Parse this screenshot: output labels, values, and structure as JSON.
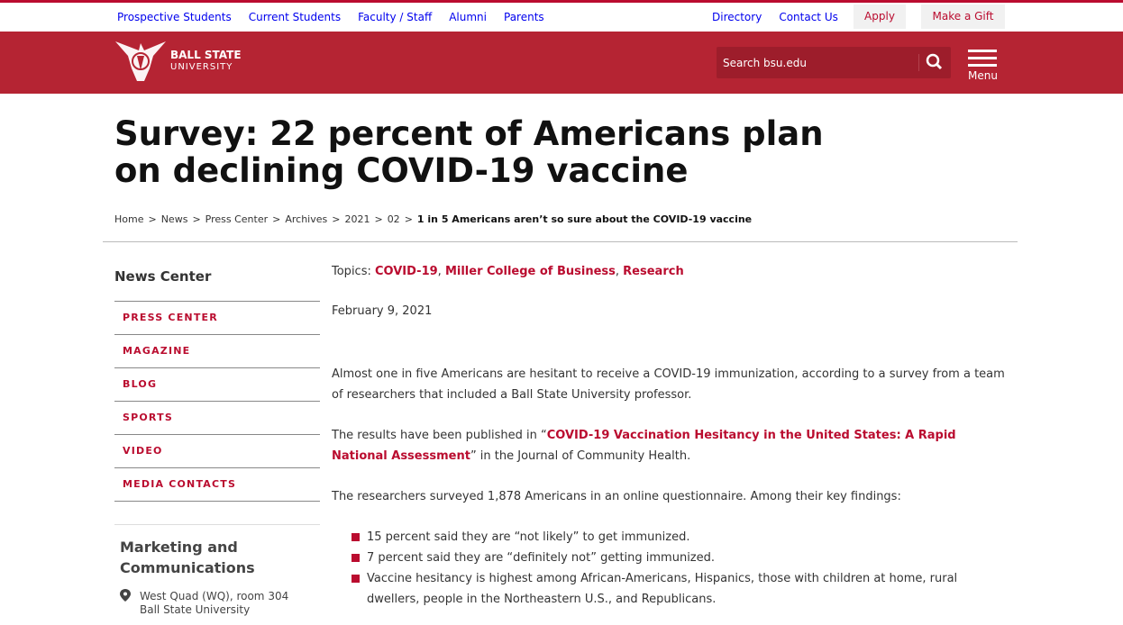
{
  "top_nav": {
    "left": [
      "Prospective Students",
      "Current Students",
      "Faculty / Staff",
      "Alumni",
      "Parents"
    ],
    "right": [
      "Directory",
      "Contact Us"
    ],
    "apply": "Apply",
    "gift": "Make a Gift"
  },
  "header": {
    "logo_line1": "BALL STATE",
    "logo_line2": "UNIVERSITY",
    "search_placeholder": "Search bsu.edu",
    "menu": "Menu"
  },
  "article": {
    "title": "Survey: 22 percent of Americans plan on declining COVID-19 vaccine"
  },
  "breadcrumb": {
    "separator": ">",
    "items": [
      "Home",
      "News",
      "Press Center",
      "Archives",
      "2021",
      "02"
    ],
    "current": "1 in 5 Americans aren’t so sure about the COVID-19 vaccine"
  },
  "sidebar": {
    "title": "News Center",
    "links": [
      "PRESS CENTER",
      "MAGAZINE",
      "BLOG",
      "SPORTS",
      "VIDEO",
      "MEDIA CONTACTS"
    ],
    "contact_title": "Marketing and Communications",
    "address": [
      "West Quad (WQ), room 304",
      "Ball State University"
    ]
  },
  "content": {
    "topics_label": "Topics:",
    "topics_separator": ",",
    "topics": [
      "COVID-19",
      "Miller College of Business",
      "Research"
    ],
    "date": "February 9, 2021",
    "paragraph1": "Almost one in five Americans are hesitant to receive a COVID-19 immunization, according to a survey from a team of researchers that included a Ball State University professor.",
    "paragraph2": {
      "before": "The results have been published in “",
      "link": "COVID-19 Vaccination Hesitancy in the United States: A Rapid National Assessment",
      "after": "” in the Journal of Community Health."
    },
    "paragraph3": "The researchers surveyed 1,878 Americans in an online questionnaire. Among their key findings:",
    "findings": [
      "15 percent said they are “not likely” to get immunized.",
      "7 percent said they are “definitely not” getting immunized.",
      "Vaccine hesitancy is highest among African-Americans, Hispanics, those with children at home, rural dwellers, people in the Northeastern U.S., and Republicans."
    ]
  }
}
